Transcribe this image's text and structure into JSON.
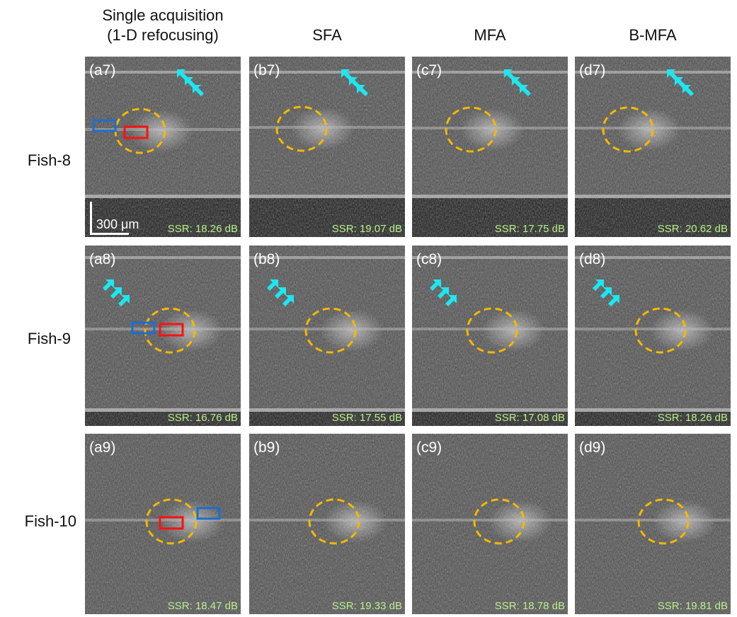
{
  "columns": [
    "Single acquisition\n(1-D refocusing)",
    "SFA",
    "MFA",
    "B-MFA"
  ],
  "rows": [
    "Fish-8",
    "Fish-9",
    "Fish-10"
  ],
  "panels": [
    [
      {
        "label": "(a7)",
        "ssr": "SSR: 18.26 dB"
      },
      {
        "label": "(b7)",
        "ssr": "SSR: 19.07 dB"
      },
      {
        "label": "(c7)",
        "ssr": "SSR: 17.75 dB"
      },
      {
        "label": "(d7)",
        "ssr": "SSR: 20.62 dB"
      }
    ],
    [
      {
        "label": "(a8)",
        "ssr": "SSR: 16.76 dB"
      },
      {
        "label": "(b8)",
        "ssr": "SSR: 17.55 dB"
      },
      {
        "label": "(c8)",
        "ssr": "SSR: 17.08 dB"
      },
      {
        "label": "(d8)",
        "ssr": "SSR: 18.26 dB"
      }
    ],
    [
      {
        "label": "(a9)",
        "ssr": "SSR: 18.47 dB"
      },
      {
        "label": "(b9)",
        "ssr": "SSR: 19.33 dB"
      },
      {
        "label": "(c9)",
        "ssr": "SSR: 18.78 dB"
      },
      {
        "label": "(d9)",
        "ssr": "SSR: 19.81 dB"
      }
    ]
  ],
  "scale_bar": "300 μm",
  "colors": {
    "ellipse": "#f5b800",
    "arrow": "#1ee6f0",
    "signal_roi": "#ff1010",
    "background_roi": "#1a6fd0",
    "ssr_text": "#b7f08a"
  }
}
